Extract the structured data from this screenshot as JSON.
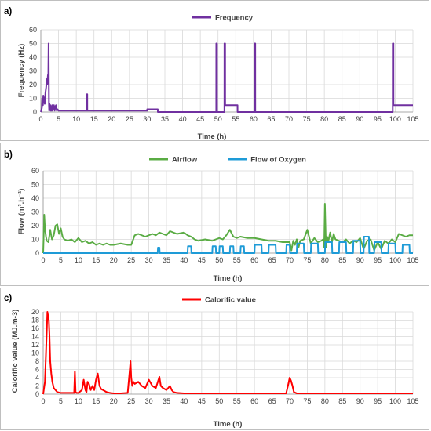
{
  "chart_data": [
    {
      "panel": "a)",
      "type": "line",
      "xlabel": "Time (h)",
      "ylabel": "Frequency (Hz)",
      "xlim": [
        0,
        105
      ],
      "ylim": [
        0,
        60
      ],
      "xticks": [
        0,
        5,
        10,
        15,
        20,
        25,
        30,
        35,
        40,
        45,
        50,
        55,
        60,
        65,
        70,
        75,
        80,
        85,
        90,
        95,
        100,
        105
      ],
      "yticks": [
        0,
        10,
        20,
        30,
        40,
        50,
        60
      ],
      "grid": true,
      "legend_position": "top-center",
      "series": [
        {
          "name": "Frequency",
          "color": "#7030a0",
          "x": [
            0,
            0.3,
            0.4,
            0.6,
            0.7,
            0.9,
            1.1,
            1.3,
            1.5,
            1.7,
            1.8,
            2.0,
            2.1,
            2.2,
            2.3,
            2.35,
            2.45,
            2.6,
            2.7,
            2.8,
            2.9,
            3.0,
            3.2,
            3.3,
            3.5,
            3.7,
            3.9,
            4.1,
            4.3,
            4.5,
            4.7,
            5.0,
            13.0,
            13.01,
            13.1,
            13.11,
            20,
            28,
            30,
            30.01,
            33,
            33.01,
            49.5,
            49.51,
            49.7,
            49.71,
            51.8,
            51.81,
            52.0,
            52.01,
            55.5,
            55.51,
            60.3,
            60.31,
            60.5,
            60.51,
            99.3,
            99.31,
            99.5,
            99.51,
            105
          ],
          "y": [
            0,
            3,
            10,
            5,
            12,
            8,
            6,
            14,
            18,
            24,
            20,
            27,
            22,
            50,
            5,
            1,
            6,
            2,
            5,
            1,
            4,
            1,
            5,
            1,
            3,
            5,
            1,
            4,
            5,
            1,
            2,
            1,
            1,
            13,
            13,
            1,
            1,
            1,
            1,
            2,
            2,
            0,
            0,
            50,
            50,
            0,
            0,
            50,
            50,
            5,
            5,
            0,
            0,
            50,
            50,
            0,
            0,
            50,
            50,
            5,
            5
          ]
        }
      ]
    },
    {
      "panel": "b)",
      "type": "line",
      "xlabel": "Time (h)",
      "ylabel": "Flow (m³.h⁻¹)",
      "xlim": [
        0,
        105
      ],
      "ylim": [
        0,
        60
      ],
      "xticks": [
        0,
        5,
        10,
        15,
        20,
        25,
        30,
        35,
        40,
        45,
        50,
        55,
        60,
        65,
        70,
        75,
        80,
        85,
        90,
        95,
        100,
        105
      ],
      "yticks": [
        0,
        10,
        20,
        30,
        40,
        50,
        60
      ],
      "grid": true,
      "legend_position": "top-center",
      "series": [
        {
          "name": "Airflow",
          "color": "#5aac44",
          "x": [
            0,
            0.3,
            0.5,
            0.8,
            1.0,
            1.5,
            2.0,
            2.5,
            3.0,
            3.5,
            4.0,
            4.5,
            5.0,
            5.5,
            6.0,
            7.0,
            8.0,
            9.0,
            10.0,
            11.0,
            12.0,
            13.0,
            14.0,
            15.0,
            16.0,
            17.0,
            18.0,
            19.0,
            20.0,
            22.0,
            24.0,
            25.0,
            26.0,
            27.0,
            28.0,
            29.0,
            30.0,
            31.0,
            32.0,
            33.0,
            34.0,
            35.0,
            36.0,
            37.0,
            38.0,
            40.0,
            41.0,
            42.0,
            43.0,
            44.0,
            46.0,
            48.0,
            50.0,
            51.0,
            52.0,
            53.0,
            54.0,
            55.0,
            56.0,
            58.0,
            60.0,
            62.0,
            64.0,
            66.0,
            68.0,
            70.0,
            70.5,
            71.0,
            71.5,
            72.0,
            72.5,
            73.0,
            74.0,
            75.0,
            76.0,
            77.0,
            78.0,
            79.0,
            79.5,
            79.8,
            80.0,
            80.3,
            80.6,
            81.0,
            81.5,
            82.0,
            82.5,
            83.0,
            84.0,
            85.0,
            86.0,
            87.0,
            88.0,
            89.0,
            90.0,
            91.0,
            92.0,
            93.0,
            94.0,
            95.0,
            96.0,
            97.0,
            98.0,
            99.0,
            100.0,
            101.0,
            102.0,
            103.0,
            104.0,
            105.0
          ],
          "y": [
            0,
            28,
            18,
            12,
            9,
            8,
            17,
            10,
            13,
            20,
            21,
            14,
            18,
            12,
            10,
            9,
            10,
            8,
            11,
            8,
            9,
            7,
            8,
            6,
            7,
            6,
            7,
            6,
            6,
            7,
            6,
            6,
            13,
            14,
            13,
            12,
            13,
            14,
            13,
            15,
            14,
            13,
            16,
            15,
            14,
            15,
            13,
            12,
            10,
            9,
            10,
            9,
            11,
            10,
            13,
            17,
            12,
            11,
            12,
            11,
            11,
            10,
            9,
            9,
            8,
            8,
            2,
            9,
            6,
            10,
            4,
            9,
            10,
            17,
            7,
            11,
            8,
            9,
            10,
            4,
            36,
            4,
            12,
            9,
            15,
            8,
            14,
            10,
            9,
            8,
            10,
            7,
            9,
            8,
            11,
            3,
            9,
            10,
            2,
            8,
            3,
            9,
            7,
            10,
            8,
            14,
            13,
            12,
            13,
            13
          ]
        },
        {
          "name": "Flow of Oxygen",
          "color": "#1e9bd7",
          "x": [
            0,
            32.5,
            32.6,
            33.0,
            33.1,
            41.0,
            41.1,
            42.0,
            42.1,
            48.0,
            48.1,
            49.0,
            49.1,
            50.0,
            50.1,
            51.0,
            51.1,
            53.0,
            53.1,
            54.0,
            54.1,
            56.0,
            56.1,
            57.0,
            57.1,
            60.0,
            60.1,
            62.0,
            62.1,
            64.0,
            64.1,
            66.0,
            66.1,
            69.0,
            69.1,
            70.0,
            70.1,
            72.0,
            72.1,
            74.0,
            74.1,
            76.0,
            76.1,
            78.0,
            78.1,
            80.0,
            80.1,
            82.0,
            82.1,
            84.0,
            84.1,
            86.0,
            86.1,
            88.0,
            88.1,
            90.0,
            90.1,
            91.0,
            91.1,
            92.5,
            92.6,
            94.0,
            94.1,
            96.0,
            96.1,
            98.0,
            98.1,
            100.0,
            100.1,
            102.0,
            102.1,
            104.0,
            104.1,
            105.0
          ],
          "y": [
            0,
            0,
            4,
            4,
            0,
            0,
            5,
            5,
            0,
            0,
            5,
            5,
            0,
            0,
            5,
            5,
            0,
            0,
            5,
            5,
            0,
            0,
            5,
            5,
            0,
            0,
            6,
            6,
            0,
            0,
            6,
            6,
            0,
            0,
            6,
            6,
            0,
            0,
            7,
            7,
            0,
            0,
            7,
            7,
            0,
            0,
            8,
            8,
            0,
            0,
            8,
            8,
            0,
            0,
            9,
            9,
            0,
            0,
            12,
            12,
            0,
            0,
            8,
            8,
            0,
            0,
            7,
            7,
            0,
            0,
            6,
            6,
            0,
            0
          ]
        }
      ]
    },
    {
      "panel": "c)",
      "type": "line",
      "xlabel": "Time (h)",
      "ylabel": "Calorific value (MJ.m-3)",
      "xlim": [
        0,
        105
      ],
      "ylim": [
        0,
        20
      ],
      "xticks": [
        0,
        5,
        10,
        15,
        20,
        25,
        30,
        35,
        40,
        45,
        50,
        55,
        60,
        65,
        70,
        75,
        80,
        85,
        90,
        95,
        100,
        105
      ],
      "yticks": [
        0,
        2,
        4,
        6,
        8,
        10,
        12,
        14,
        16,
        18,
        20
      ],
      "grid": true,
      "legend_position": "top-center",
      "series": [
        {
          "name": "Calorific value",
          "color": "#ff0000",
          "x": [
            0,
            0.5,
            0.8,
            1.0,
            1.2,
            1.4,
            1.6,
            1.8,
            2.0,
            2.3,
            2.6,
            3.0,
            3.5,
            4.0,
            5.0,
            6.0,
            7.0,
            8.0,
            8.8,
            9.0,
            9.2,
            9.5,
            10.0,
            11.0,
            11.5,
            12.0,
            12.3,
            12.6,
            13.0,
            13.5,
            14.0,
            14.5,
            15.0,
            15.5,
            16.0,
            16.5,
            17.0,
            18.0,
            19.0,
            20.0,
            22.0,
            24.0,
            24.5,
            24.8,
            25.0,
            25.3,
            25.6,
            26.0,
            27.0,
            28.0,
            29.0,
            30.0,
            31.0,
            32.0,
            33.0,
            33.4,
            34.0,
            35.0,
            36.0,
            36.5,
            37.0,
            38.0,
            40.0,
            45.0,
            50.0,
            55.0,
            60.0,
            65.0,
            69.0,
            69.5,
            70.0,
            70.4,
            70.8,
            71.2,
            72.0,
            75.0,
            80.0,
            85.0,
            90.0,
            95.0,
            100.0,
            105.0
          ],
          "y": [
            0,
            3,
            10,
            15,
            20,
            19,
            18,
            14,
            8,
            5,
            3,
            1.5,
            1,
            0.5,
            0.3,
            0.3,
            0.3,
            0.3,
            0.3,
            5.5,
            0.5,
            0.3,
            0.3,
            1,
            3.5,
            1,
            0.5,
            3,
            2.5,
            1,
            2,
            1,
            3.5,
            5,
            2,
            1.2,
            1,
            0.5,
            0.3,
            0.2,
            0.2,
            0.3,
            5,
            8,
            4,
            2,
            3,
            2.5,
            3,
            2,
            1.5,
            3.5,
            2,
            1.5,
            4.2,
            2,
            1.5,
            1,
            2,
            1,
            0.5,
            0.3,
            0.2,
            0.2,
            0.2,
            0.2,
            0.2,
            0.2,
            0.2,
            2,
            4,
            3.2,
            2,
            0.5,
            0.2,
            0.2,
            0.2,
            0.2,
            0.2,
            0.2,
            0.2,
            0.2
          ]
        }
      ]
    }
  ]
}
